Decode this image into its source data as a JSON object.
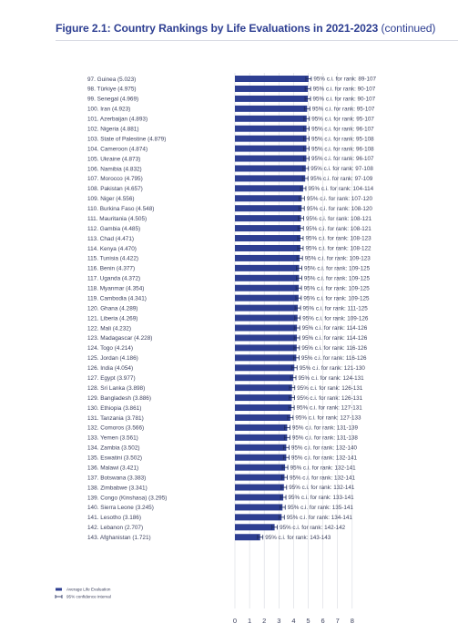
{
  "figure": {
    "title_bold": "Figure 2.1: Country Rankings by Life Evaluations in 2021-2023",
    "title_continued": "(continued)"
  },
  "chart_data": {
    "type": "bar",
    "orientation": "horizontal",
    "xlim": [
      0,
      8
    ],
    "x_ticks": [
      "0",
      "1",
      "2",
      "3",
      "4",
      "5",
      "6",
      "7",
      "8"
    ],
    "bar_color": "#2e3f92",
    "rows": [
      {
        "label": "97. Guinea (5.023)",
        "value": 5.023,
        "ci_text": "95% c.i. for rank: 89-107"
      },
      {
        "label": "98. Türkiye (4.975)",
        "value": 4.975,
        "ci_text": "95% c.i. for rank: 90-107"
      },
      {
        "label": "99. Senegal (4.969)",
        "value": 4.969,
        "ci_text": "95% c.i. for rank: 90-107"
      },
      {
        "label": "100. Iran (4.923)",
        "value": 4.923,
        "ci_text": "95% c.i. for rank: 95-107"
      },
      {
        "label": "101. Azerbaijan (4.893)",
        "value": 4.893,
        "ci_text": "95% c.i. for rank: 95-107"
      },
      {
        "label": "102. Nigeria (4.881)",
        "value": 4.881,
        "ci_text": "95% c.i. for rank: 96-107"
      },
      {
        "label": "103. State of Palestine (4.879)",
        "value": 4.879,
        "ci_text": "95% c.i. for rank: 95-108"
      },
      {
        "label": "104. Cameroon (4.874)",
        "value": 4.874,
        "ci_text": "95% c.i. for rank: 96-108"
      },
      {
        "label": "105. Ukraine (4.873)",
        "value": 4.873,
        "ci_text": "95% c.i. for rank: 96-107"
      },
      {
        "label": "106. Namibia (4.832)",
        "value": 4.832,
        "ci_text": "95% c.i. for rank: 97-108"
      },
      {
        "label": "107. Morocco (4.795)",
        "value": 4.795,
        "ci_text": "95% c.i. for rank: 97-109"
      },
      {
        "label": "108. Pakistan (4.657)",
        "value": 4.657,
        "ci_text": "95% c.i. for rank: 104-114"
      },
      {
        "label": "109. Niger (4.556)",
        "value": 4.556,
        "ci_text": "95% c.i. for rank: 107-120"
      },
      {
        "label": "110. Burkina Faso (4.548)",
        "value": 4.548,
        "ci_text": "95% c.i. for rank: 108-120"
      },
      {
        "label": "111. Mauritania (4.505)",
        "value": 4.505,
        "ci_text": "95% c.i. for rank: 108-121"
      },
      {
        "label": "112. Gambia (4.485)",
        "value": 4.485,
        "ci_text": "95% c.i. for rank: 108-121"
      },
      {
        "label": "113. Chad (4.471)",
        "value": 4.471,
        "ci_text": "95% c.i. for rank: 108-123"
      },
      {
        "label": "114. Kenya (4.470)",
        "value": 4.47,
        "ci_text": "95% c.i. for rank: 108-122"
      },
      {
        "label": "115. Tunisia (4.422)",
        "value": 4.422,
        "ci_text": "95% c.i. for rank: 109-123"
      },
      {
        "label": "116. Benin (4.377)",
        "value": 4.377,
        "ci_text": "95% c.i. for rank: 109-125"
      },
      {
        "label": "117. Uganda (4.372)",
        "value": 4.372,
        "ci_text": "95% c.i. for rank: 109-125"
      },
      {
        "label": "118. Myanmar (4.354)",
        "value": 4.354,
        "ci_text": "95% c.i. for rank: 109-125"
      },
      {
        "label": "119. Cambodia (4.341)",
        "value": 4.341,
        "ci_text": "95% c.i. for rank: 109-125"
      },
      {
        "label": "120. Ghana (4.289)",
        "value": 4.289,
        "ci_text": "95% c.i. for rank: 111-125"
      },
      {
        "label": "121. Liberia (4.269)",
        "value": 4.269,
        "ci_text": "95% c.i. for rank: 109-126"
      },
      {
        "label": "122. Mali (4.232)",
        "value": 4.232,
        "ci_text": "95% c.i. for rank: 114-126"
      },
      {
        "label": "123. Madagascar (4.228)",
        "value": 4.228,
        "ci_text": "95% c.i. for rank: 114-126"
      },
      {
        "label": "124. Togo (4.214)",
        "value": 4.214,
        "ci_text": "95% c.i. for rank: 116-126"
      },
      {
        "label": "125. Jordan (4.186)",
        "value": 4.186,
        "ci_text": "95% c.i. for rank: 116-126"
      },
      {
        "label": "126. India (4.054)",
        "value": 4.054,
        "ci_text": "95% c.i. for rank: 121-130"
      },
      {
        "label": "127. Egypt (3.977)",
        "value": 3.977,
        "ci_text": "95% c.i. for rank: 124-131"
      },
      {
        "label": "128. Sri Lanka (3.898)",
        "value": 3.898,
        "ci_text": "95% c.i. for rank: 126-131"
      },
      {
        "label": "129. Bangladesh (3.886)",
        "value": 3.886,
        "ci_text": "95% c.i. for rank: 126-131"
      },
      {
        "label": "130. Ethiopia (3.861)",
        "value": 3.861,
        "ci_text": "95% c.i. for rank: 127-131"
      },
      {
        "label": "131. Tanzania (3.781)",
        "value": 3.781,
        "ci_text": "95% c.i. for rank: 127-133"
      },
      {
        "label": "132. Comoros (3.566)",
        "value": 3.566,
        "ci_text": "95% c.i. for rank: 131-139"
      },
      {
        "label": "133. Yemen (3.561)",
        "value": 3.561,
        "ci_text": "95% c.i. for rank: 131-138"
      },
      {
        "label": "134. Zambia (3.502)",
        "value": 3.502,
        "ci_text": "95% c.i. for rank: 132-140"
      },
      {
        "label": "135. Eswatini (3.502)",
        "value": 3.502,
        "ci_text": "95% c.i. for rank: 132-141"
      },
      {
        "label": "136. Malawi (3.421)",
        "value": 3.421,
        "ci_text": "95% c.i. for rank: 132-141"
      },
      {
        "label": "137. Botswana (3.383)",
        "value": 3.383,
        "ci_text": "95% c.i. for rank: 132-141"
      },
      {
        "label": "138. Zimbabwe (3.341)",
        "value": 3.341,
        "ci_text": "95% c.i. for rank: 132-141"
      },
      {
        "label": "139. Congo (Kinshasa) (3.295)",
        "value": 3.295,
        "ci_text": "95% c.i. for rank: 133-141"
      },
      {
        "label": "140. Sierra Leone (3.245)",
        "value": 3.245,
        "ci_text": "95% c.i. for rank: 135-141"
      },
      {
        "label": "141. Lesotho (3.186)",
        "value": 3.186,
        "ci_text": "95% c.i. for rank: 134-141"
      },
      {
        "label": "142. Lebanon (2.707)",
        "value": 2.707,
        "ci_text": "95% c.i. for rank: 142-142"
      },
      {
        "label": "143. Afghanistan (1.721)",
        "value": 1.721,
        "ci_text": "95% c.i. for rank: 143-143"
      }
    ],
    "legend": [
      "Average Life Evaluation",
      "95% confidence interval"
    ]
  }
}
